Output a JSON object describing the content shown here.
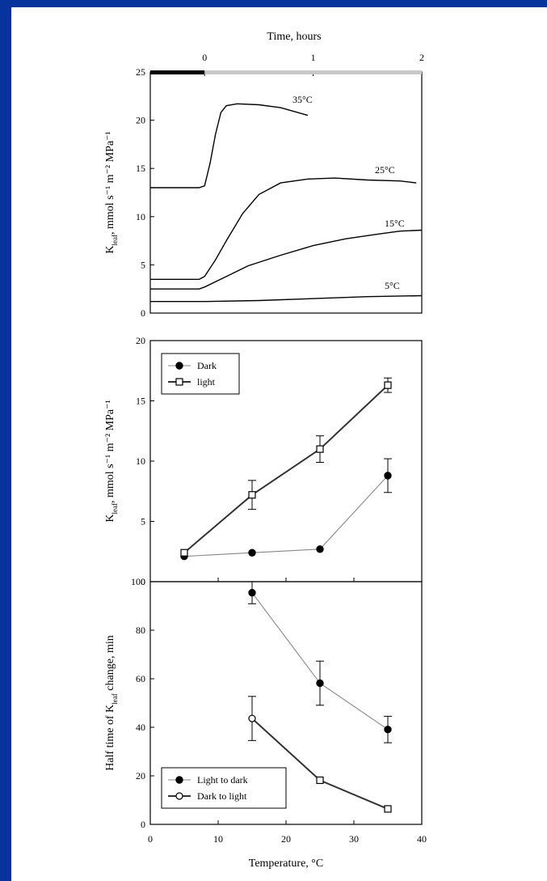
{
  "chart_data": [
    {
      "type": "line",
      "xlabel_top": "Time, hours",
      "ylabel": "K_leaf, mmol s⁻¹ m⁻² MPa⁻¹",
      "xlim": [
        -0.5,
        2
      ],
      "ylim": [
        0,
        25
      ],
      "x_ticks": [
        "0",
        "1",
        "2"
      ],
      "y_ticks": [
        "0",
        "5",
        "10",
        "15",
        "20",
        "25"
      ],
      "dark_bar": [
        -0.5,
        0
      ],
      "light_bar": [
        0,
        2
      ],
      "series": [
        {
          "name": "35°C",
          "x": [
            -0.5,
            -0.05,
            0.0,
            0.05,
            0.1,
            0.15,
            0.2,
            0.3,
            0.5,
            0.7,
            0.95
          ],
          "y": [
            13,
            13,
            13.2,
            15.5,
            18.5,
            20.8,
            21.5,
            21.7,
            21.6,
            21.3,
            20.5
          ]
        },
        {
          "name": "25°C",
          "x": [
            -0.5,
            -0.05,
            0.0,
            0.1,
            0.2,
            0.35,
            0.5,
            0.7,
            0.95,
            1.2,
            1.5,
            1.8,
            1.95
          ],
          "y": [
            3.5,
            3.5,
            3.8,
            5.5,
            7.5,
            10.3,
            12.3,
            13.5,
            13.9,
            14.0,
            13.8,
            13.7,
            13.5
          ]
        },
        {
          "name": "15°C",
          "x": [
            -0.5,
            -0.05,
            0.0,
            0.2,
            0.4,
            0.7,
            1.0,
            1.3,
            1.6,
            1.8,
            2.0
          ],
          "y": [
            2.5,
            2.5,
            2.7,
            3.8,
            4.9,
            6.0,
            7.0,
            7.7,
            8.2,
            8.5,
            8.6
          ]
        },
        {
          "name": "5°C",
          "x": [
            -0.5,
            0.0,
            0.5,
            1.0,
            1.5,
            2.0
          ],
          "y": [
            1.2,
            1.2,
            1.3,
            1.5,
            1.7,
            1.8
          ]
        }
      ]
    },
    {
      "type": "line",
      "ylabel": "K_leaf, mmol s⁻¹ m⁻² MPa⁻¹",
      "xlim": [
        0,
        40
      ],
      "ylim": [
        0,
        20
      ],
      "y_ticks": [
        "0",
        "5",
        "10",
        "15",
        "20"
      ],
      "legend": "top-left",
      "series": [
        {
          "name": "Dark",
          "marker": "filled-circle",
          "x": [
            5,
            15,
            25,
            35
          ],
          "y": [
            2.1,
            2.4,
            2.7,
            8.8
          ],
          "err": [
            0,
            0,
            0,
            1.4
          ]
        },
        {
          "name": "light",
          "marker": "open-square",
          "x": [
            5,
            15,
            25,
            35
          ],
          "y": [
            2.4,
            7.2,
            11.0,
            16.3
          ],
          "err": [
            0,
            1.2,
            1.1,
            0.6
          ]
        }
      ]
    },
    {
      "type": "line",
      "xlabel": "Temperature, °C",
      "ylabel": "Half time of K_leaf change, min",
      "xlim": [
        0,
        40
      ],
      "ylim": [
        0,
        110
      ],
      "x_ticks": [
        "0",
        "10",
        "20",
        "30",
        "40"
      ],
      "y_ticks": [
        "0",
        "20",
        "40",
        "60",
        "80",
        "100"
      ],
      "legend": "bottom-left",
      "series": [
        {
          "name": "Light to dark",
          "marker": "filled-circle",
          "x": [
            15,
            25,
            35
          ],
          "y": [
            105,
            64,
            43
          ],
          "err": [
            5,
            10,
            6
          ]
        },
        {
          "name": "Dark to light",
          "marker": "open-circle",
          "x": [
            15,
            25,
            35
          ],
          "y": [
            48,
            20,
            7
          ],
          "err": [
            10,
            0,
            0
          ]
        }
      ]
    }
  ]
}
